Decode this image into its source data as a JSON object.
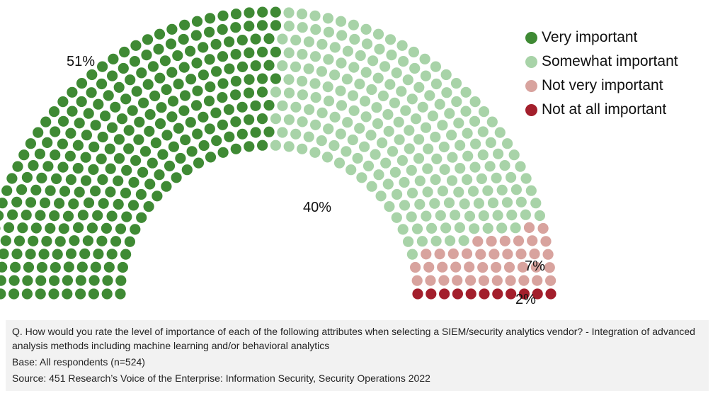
{
  "chart_data": {
    "type": "parliament",
    "series": [
      {
        "name": "Very important",
        "value": 51,
        "label": "51%",
        "color": "#3f8a34"
      },
      {
        "name": "Somewhat important",
        "value": 40,
        "label": "40%",
        "color": "#a8d3a8"
      },
      {
        "name": "Not very important",
        "value": 7,
        "label": "7%",
        "color": "#d8a39e"
      },
      {
        "name": "Not at all important",
        "value": 2,
        "label": "2%",
        "color": "#a31f2c"
      }
    ]
  },
  "footer": {
    "question": "Q. How would you rate the level of importance of each of the following attributes when selecting a SIEM/security analytics vendor? - Integration of advanced analysis methods including machine learning and/or behavioral analytics",
    "base": "Base: All respondents (n=524)",
    "source": "Source: 451 Research’s Voice of the Enterprise: Information Security, Security Operations 2022"
  }
}
